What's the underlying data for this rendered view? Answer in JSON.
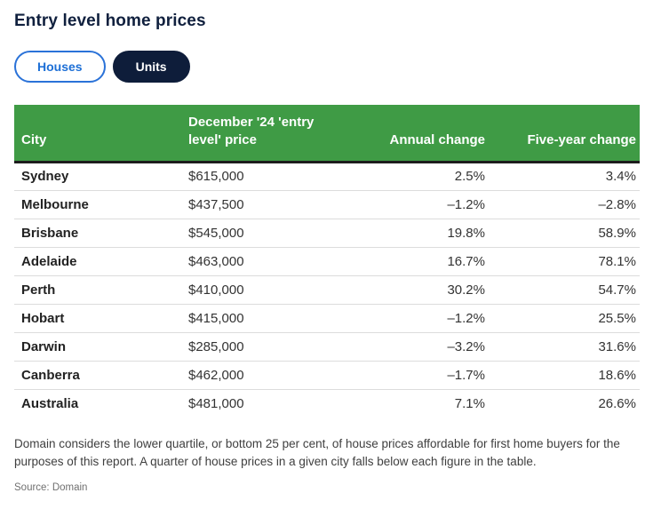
{
  "chart_data": {
    "type": "table",
    "title": "Entry level home prices",
    "tabs": [
      "Houses",
      "Units"
    ],
    "active_tab": "Units",
    "columns": [
      "City",
      "December '24 'entry level' price",
      "Annual change",
      "Five-year change"
    ],
    "rows": [
      {
        "city": "Sydney",
        "price": "$615,000",
        "annual_change": "2.5%",
        "five_year_change": "3.4%"
      },
      {
        "city": "Melbourne",
        "price": "$437,500",
        "annual_change": "–1.2%",
        "five_year_change": "–2.8%"
      },
      {
        "city": "Brisbane",
        "price": "$545,000",
        "annual_change": "19.8%",
        "five_year_change": "58.9%"
      },
      {
        "city": "Adelaide",
        "price": "$463,000",
        "annual_change": "16.7%",
        "five_year_change": "78.1%"
      },
      {
        "city": "Perth",
        "price": "$410,000",
        "annual_change": "30.2%",
        "five_year_change": "54.7%"
      },
      {
        "city": "Hobart",
        "price": "$415,000",
        "annual_change": "–1.2%",
        "five_year_change": "25.5%"
      },
      {
        "city": "Darwin",
        "price": "$285,000",
        "annual_change": "–3.2%",
        "five_year_change": "31.6%"
      },
      {
        "city": "Canberra",
        "price": "$462,000",
        "annual_change": "–1.7%",
        "five_year_change": "18.6%"
      },
      {
        "city": "Australia",
        "price": "$481,000",
        "annual_change": "7.1%",
        "five_year_change": "26.6%"
      }
    ],
    "notes": "Domain considers the lower quartile, or bottom 25 per cent, of house prices affordable for first home buyers for the purposes of this report. A quarter of house prices in a given city falls below each figure in the table.",
    "source": "Source: Domain",
    "colors": {
      "header_background": "#3f9b45",
      "header_text": "#ffffff",
      "title_navy": "#10203e",
      "tab_active_background": "#0e1d3a",
      "tab_inactive_blue": "#1d6fd6",
      "header_bottom_border": "#1d1d1d",
      "row_divider": "#dcdcdc"
    }
  }
}
